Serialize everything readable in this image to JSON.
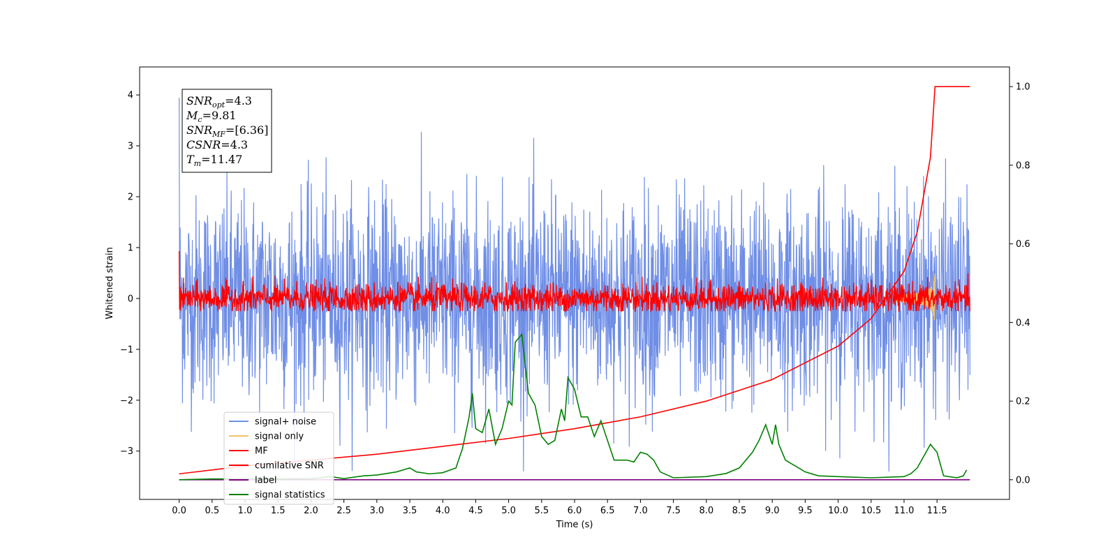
{
  "chart_data": {
    "type": "line",
    "title": "",
    "xlabel": "Time (s)",
    "ylabel": "Whitened strain",
    "ylabel_right": "",
    "xlim": [
      -0.6,
      12.6
    ],
    "ylim": [
      -3.95,
      4.55
    ],
    "ylim_right": [
      -0.05,
      1.05
    ],
    "grid": false,
    "legend_position": "lower-left",
    "x_ticks": [
      "0.0",
      "0.5",
      "1.0",
      "1.5",
      "2.0",
      "2.5",
      "3.0",
      "3.5",
      "4.0",
      "4.5",
      "5.0",
      "5.5",
      "6.0",
      "6.5",
      "7.0",
      "7.5",
      "8.0",
      "8.5",
      "9.0",
      "9.5",
      "10.0",
      "10.5",
      "11.0",
      "11.5"
    ],
    "y_ticks": [
      "4",
      "3",
      "2",
      "1",
      "0",
      "−1",
      "−2",
      "−3"
    ],
    "y_ticks_right": [
      "1.0",
      "0.8",
      "0.6",
      "0.4",
      "0.2",
      "0.0"
    ],
    "duration": 12.0,
    "merger_time": 11.47,
    "series": [
      {
        "name": "signal+ noise",
        "color": "#6f8ee6",
        "axis": "left",
        "kind": "noise",
        "center": 0.0,
        "std": 1.0,
        "min": -3.4,
        "max": 4.15
      },
      {
        "name": "signal only",
        "color": "#f2c26b",
        "axis": "left",
        "kind": "chirp",
        "peak_amplitude": 0.55
      },
      {
        "name": "MF",
        "color": "#ff0000",
        "axis": "left",
        "kind": "noise",
        "center": 0.0,
        "std": 0.15,
        "min": -0.25,
        "max": 0.98
      },
      {
        "name": "cumilative SNR",
        "color": "#ff0000",
        "axis": "right",
        "x": [
          0.0,
          1.0,
          2.0,
          3.0,
          4.0,
          5.0,
          6.0,
          7.0,
          8.0,
          9.0,
          10.0,
          10.5,
          11.0,
          11.2,
          11.4,
          11.47,
          11.5,
          12.0
        ],
        "y": [
          0.015,
          0.035,
          0.05,
          0.065,
          0.085,
          0.105,
          0.13,
          0.16,
          0.2,
          0.255,
          0.34,
          0.41,
          0.53,
          0.63,
          0.82,
          1.0,
          1.0,
          1.0
        ]
      },
      {
        "name": "label",
        "color": "#800080",
        "axis": "right",
        "x": [
          0.0,
          12.0
        ],
        "y": [
          0.0,
          0.0
        ]
      },
      {
        "name": "signal statistics",
        "color": "#008000",
        "axis": "right",
        "x": [
          0.0,
          0.5,
          1.0,
          1.5,
          2.0,
          2.3,
          2.5,
          2.8,
          3.0,
          3.3,
          3.5,
          3.6,
          3.8,
          4.0,
          4.2,
          4.3,
          4.4,
          4.45,
          4.5,
          4.6,
          4.7,
          4.8,
          4.9,
          5.0,
          5.05,
          5.1,
          5.2,
          5.3,
          5.4,
          5.5,
          5.6,
          5.7,
          5.8,
          5.85,
          5.9,
          6.0,
          6.1,
          6.2,
          6.3,
          6.4,
          6.5,
          6.6,
          6.8,
          6.9,
          7.0,
          7.1,
          7.2,
          7.3,
          7.5,
          8.0,
          8.3,
          8.5,
          8.7,
          8.8,
          8.9,
          9.0,
          9.05,
          9.1,
          9.2,
          9.5,
          9.7,
          10.0,
          10.5,
          11.0,
          11.1,
          11.2,
          11.3,
          11.4,
          11.5,
          11.6,
          11.8,
          11.9,
          11.95
        ],
        "y": [
          0.0,
          0.002,
          0.002,
          0.002,
          0.003,
          0.008,
          0.003,
          0.01,
          0.012,
          0.02,
          0.03,
          0.02,
          0.015,
          0.018,
          0.03,
          0.08,
          0.16,
          0.22,
          0.13,
          0.12,
          0.18,
          0.09,
          0.13,
          0.2,
          0.19,
          0.35,
          0.37,
          0.22,
          0.19,
          0.11,
          0.09,
          0.1,
          0.18,
          0.15,
          0.26,
          0.23,
          0.16,
          0.16,
          0.11,
          0.15,
          0.1,
          0.05,
          0.05,
          0.045,
          0.07,
          0.065,
          0.05,
          0.02,
          0.005,
          0.008,
          0.016,
          0.03,
          0.07,
          0.1,
          0.14,
          0.09,
          0.14,
          0.09,
          0.05,
          0.02,
          0.01,
          0.008,
          0.005,
          0.008,
          0.015,
          0.03,
          0.06,
          0.09,
          0.07,
          0.01,
          0.005,
          0.01,
          0.025
        ]
      }
    ]
  },
  "info_box": {
    "lines": [
      {
        "main": "SNR",
        "sub": "opt",
        "value": "=4.3"
      },
      {
        "main": "M",
        "sub": "c",
        "value": "=9.81"
      },
      {
        "main": "SNR",
        "sub": "MF",
        "value": "=[6.36]"
      },
      {
        "main": "CSNR",
        "sub": "",
        "value": "=4.3"
      },
      {
        "main": "T",
        "sub": "m",
        "value": "=11.47"
      }
    ]
  }
}
